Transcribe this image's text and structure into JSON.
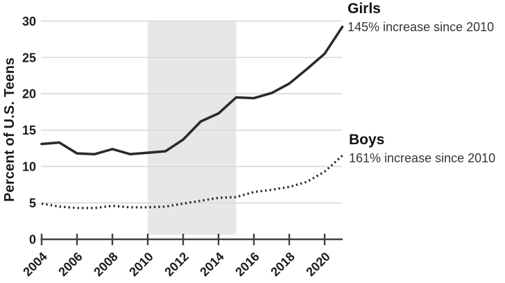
{
  "chart_data": {
    "type": "line",
    "title": "",
    "xlabel": "",
    "ylabel": "Percent of U.S. Teens",
    "x": [
      2004,
      2005,
      2006,
      2007,
      2008,
      2009,
      2010,
      2011,
      2012,
      2013,
      2014,
      2015,
      2016,
      2017,
      2018,
      2019,
      2020,
      2021
    ],
    "series": [
      {
        "name": "Girls",
        "annotation": "145% increase since 2010",
        "style": "solid",
        "values": [
          13.1,
          13.3,
          11.8,
          11.7,
          12.4,
          11.7,
          11.9,
          12.1,
          13.7,
          16.2,
          17.3,
          19.5,
          19.4,
          20.1,
          21.4,
          23.4,
          25.5,
          29.2
        ]
      },
      {
        "name": "Boys",
        "annotation": "161% increase since 2010",
        "style": "dotted",
        "values": [
          4.9,
          4.5,
          4.3,
          4.3,
          4.6,
          4.4,
          4.4,
          4.5,
          4.9,
          5.3,
          5.7,
          5.8,
          6.5,
          6.8,
          7.2,
          7.9,
          9.3,
          11.5
        ]
      }
    ],
    "x_ticks": [
      2004,
      2006,
      2008,
      2010,
      2012,
      2014,
      2016,
      2018,
      2020
    ],
    "y_ticks": [
      0,
      5,
      10,
      15,
      20,
      25,
      30
    ],
    "xlim": [
      2004,
      2021.5
    ],
    "ylim": [
      0,
      31
    ],
    "grid": "horizontal",
    "shaded_region": {
      "from": 2010,
      "to": 2015
    },
    "legend_position": "right-annotations"
  },
  "colors": {
    "line": "#2b2b2b",
    "gridline": "#d8d8d8",
    "axis": "#3f3f3f",
    "band": "#e7e7e7",
    "tick_text": "#1a1a1a"
  }
}
